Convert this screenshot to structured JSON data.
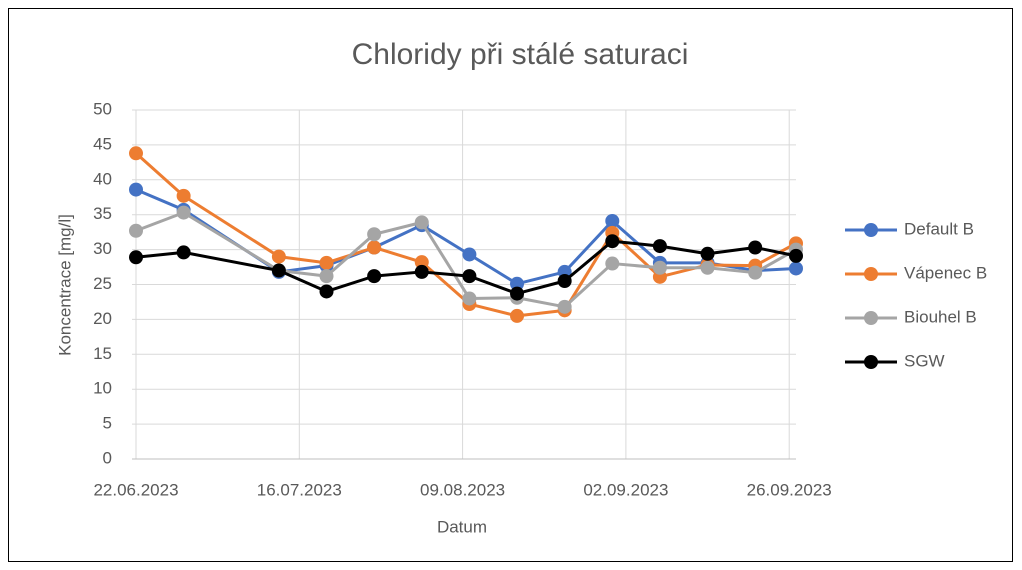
{
  "chart_data": {
    "type": "line",
    "title": "Chloridy při stálé saturaci",
    "xlabel": "Datum",
    "ylabel": "Koncentrace [mg/l]",
    "x": [
      "2023-06-22",
      "2023-06-29",
      "2023-07-13",
      "2023-07-20",
      "2023-07-27",
      "2023-08-03",
      "2023-08-10",
      "2023-08-17",
      "2023-08-24",
      "2023-08-31",
      "2023-09-07",
      "2023-09-14",
      "2023-09-21",
      "2023-09-27"
    ],
    "series": [
      {
        "name": "Default B",
        "color": "#4472c4",
        "values": [
          38.6,
          35.7,
          26.8,
          27.7,
          30.3,
          33.5,
          29.3,
          25.1,
          26.8,
          34.1,
          28.1,
          28.1,
          27.0,
          27.3
        ]
      },
      {
        "name": "Vápenec B",
        "color": "#ed7d31",
        "values": [
          43.8,
          37.7,
          29.0,
          28.1,
          30.3,
          28.2,
          22.2,
          20.5,
          21.3,
          32.4,
          26.1,
          27.8,
          27.7,
          30.9
        ]
      },
      {
        "name": "Biouhel B",
        "color": "#a5a5a5",
        "values": [
          32.7,
          35.3,
          27.0,
          26.2,
          32.2,
          33.9,
          23.0,
          23.1,
          21.8,
          28.0,
          27.4,
          27.4,
          26.7,
          30.0
        ]
      },
      {
        "name": "SGW",
        "color": "#000000",
        "values": [
          28.9,
          29.6,
          27.0,
          24.0,
          26.2,
          26.8,
          26.2,
          23.7,
          25.5,
          31.2,
          30.5,
          29.4,
          30.3,
          29.1
        ]
      }
    ],
    "xlim": [
      "2023-06-22",
      "2023-09-27"
    ],
    "xticks": [
      {
        "value": "2023-06-22",
        "label": "22.06.2023"
      },
      {
        "value": "2023-07-16",
        "label": "16.07.2023"
      },
      {
        "value": "2023-08-09",
        "label": "09.08.2023"
      },
      {
        "value": "2023-09-02",
        "label": "02.09.2023"
      },
      {
        "value": "2023-09-26",
        "label": "26.09.2023"
      }
    ],
    "ylim": [
      0,
      50
    ],
    "yticks": [
      0,
      5,
      10,
      15,
      20,
      25,
      30,
      35,
      40,
      45,
      50
    ],
    "grid": true,
    "legend": "right"
  }
}
